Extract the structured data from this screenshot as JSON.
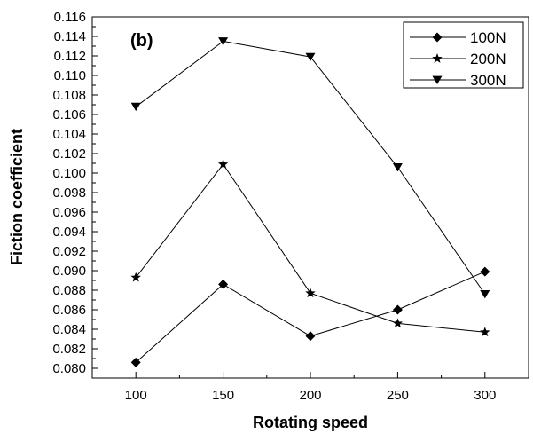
{
  "chart_data": {
    "type": "line",
    "panel_label": "(b)",
    "xlabel": "Rotating speed",
    "ylabel": "Fiction coefficient",
    "x": [
      100,
      150,
      200,
      250,
      300
    ],
    "xlim": [
      75,
      325
    ],
    "ylim": [
      0.079,
      0.116
    ],
    "x_ticks": [
      "100",
      "150",
      "200",
      "250",
      "300"
    ],
    "y_ticks": [
      "0.080",
      "0.082",
      "0.084",
      "0.086",
      "0.088",
      "0.090",
      "0.092",
      "0.094",
      "0.096",
      "0.098",
      "0.100",
      "0.102",
      "0.104",
      "0.106",
      "0.108",
      "0.110",
      "0.112",
      "0.114",
      "0.116"
    ],
    "grid": false,
    "legend_position": "top-right",
    "series": [
      {
        "name": "100N",
        "marker": "diamond",
        "values": [
          0.0806,
          0.0886,
          0.0833,
          0.086,
          0.0899
        ]
      },
      {
        "name": "200N",
        "marker": "star",
        "values": [
          0.0893,
          0.1009,
          0.0877,
          0.0846,
          0.0837
        ]
      },
      {
        "name": "300N",
        "marker": "triangle-down",
        "values": [
          0.1068,
          0.1135,
          0.1119,
          0.1006,
          0.0876
        ]
      }
    ]
  }
}
